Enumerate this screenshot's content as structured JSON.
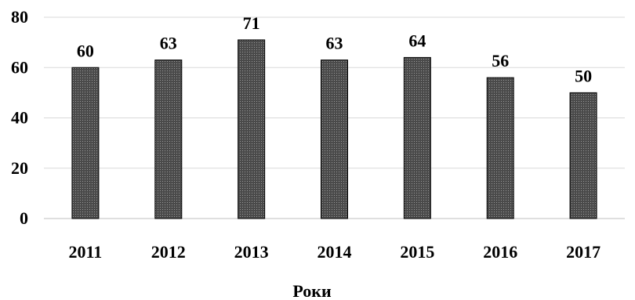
{
  "chart_data": {
    "type": "bar",
    "categories": [
      "2011",
      "2012",
      "2013",
      "2014",
      "2015",
      "2016",
      "2017"
    ],
    "values": [
      60,
      63,
      71,
      63,
      64,
      56,
      50
    ],
    "title": "",
    "xlabel": "Роки",
    "ylabel": "",
    "ylim": [
      0,
      80
    ],
    "yticks": [
      0,
      20,
      40,
      60,
      80
    ],
    "grid": true,
    "data_labels": true,
    "colors": {
      "bar_fill": "#4a4a4a",
      "bar_pattern_dot": "#9a9a9a",
      "bar_stroke": "#000000",
      "gridline": "#d9d9d9",
      "text": "#000000"
    }
  }
}
